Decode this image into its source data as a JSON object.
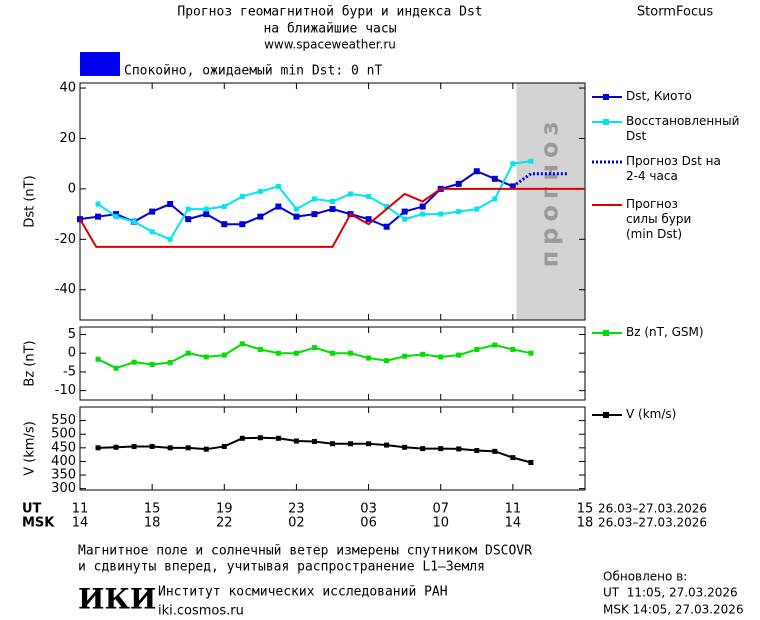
{
  "header": {
    "title": "Прогноз геомагнитной бури и индекса Dst",
    "subtitle": "на ближайшие часы",
    "url": "www.spaceweather.ru",
    "brand": "StormFocus"
  },
  "status": {
    "text": "Спокойно, ожидаемый min Dst: 0 nT",
    "color": "#0000ee"
  },
  "chart_data": [
    {
      "type": "line",
      "ylabel": "Dst (nT)",
      "xlim": [
        0,
        28
      ],
      "ylim": [
        -52,
        42
      ],
      "yticks": [
        -40,
        -20,
        0,
        20,
        40
      ],
      "forecast_region": {
        "xlim": [
          24.2,
          28
        ],
        "label": "прогноз",
        "color": "#d3d3d3"
      },
      "series": [
        {
          "name": "Dst, Киото",
          "color": "#0000dd",
          "marker": "square",
          "line": "solid",
          "x": [
            0,
            1,
            2,
            3,
            4,
            5,
            6,
            7,
            8,
            9,
            10,
            11,
            12,
            13,
            14,
            15,
            16,
            17,
            18,
            19,
            20,
            21,
            22,
            23,
            24
          ],
          "values": [
            -12,
            -11,
            -10,
            -13,
            -9,
            -6,
            -12,
            -10,
            -14,
            -14,
            -11,
            -7,
            -11,
            -10,
            -8,
            -10,
            -12,
            -15,
            -9,
            -7,
            0,
            2,
            7,
            4,
            1
          ]
        },
        {
          "name": "Восстановленный Dst",
          "color": "#00e5ee",
          "marker": "square",
          "line": "solid",
          "x": [
            1,
            2,
            3,
            4,
            5,
            6,
            7,
            8,
            9,
            10,
            11,
            12,
            13,
            14,
            15,
            16,
            17,
            18,
            19,
            20,
            21,
            22,
            23,
            24,
            25
          ],
          "values": [
            -6,
            -11,
            -13,
            -17,
            -20,
            -8,
            -8,
            -7,
            -3,
            -1,
            1,
            -8,
            -4,
            -5,
            -2,
            -3,
            -7,
            -12,
            -10,
            -10,
            -9,
            -8,
            -4,
            10,
            11
          ]
        },
        {
          "name": "Прогноз Dst на 2-4 часа",
          "color": "#0000dd",
          "marker": "none",
          "line": "dotted",
          "x": [
            24,
            25,
            26,
            27
          ],
          "values": [
            1,
            6,
            6,
            6
          ]
        },
        {
          "name": "Прогноз силы бури (min Dst)",
          "color": "#dd0000",
          "marker": "none",
          "line": "solid",
          "x": [
            0,
            0.9,
            14,
            15,
            16,
            18,
            19,
            20,
            28
          ],
          "values": [
            -12,
            -23,
            -23,
            -10,
            -14,
            -2,
            -5,
            0,
            0
          ]
        }
      ]
    },
    {
      "type": "line",
      "ylabel": "Bz (nT)",
      "xlim": [
        0,
        28
      ],
      "ylim": [
        -12.5,
        7
      ],
      "yticks": [
        -10,
        -5,
        0,
        5
      ],
      "series": [
        {
          "name": "Bz (nT, GSM)",
          "color": "#00dd00",
          "marker": "square",
          "line": "solid",
          "x": [
            1,
            2,
            3,
            4,
            5,
            6,
            7,
            8,
            9,
            10,
            11,
            12,
            13,
            14,
            15,
            16,
            17,
            18,
            19,
            20,
            21,
            22,
            23,
            24,
            25
          ],
          "values": [
            -1.6,
            -4,
            -2.4,
            -3,
            -2.5,
            0,
            -1,
            -0.5,
            2.5,
            1,
            0,
            0,
            1.5,
            0,
            0,
            -1.3,
            -2,
            -0.8,
            -0.3,
            -1,
            -0.5,
            1,
            2.2,
            1,
            0
          ]
        }
      ]
    },
    {
      "type": "line",
      "ylabel": "V (km/s)",
      "xlim": [
        0,
        28
      ],
      "ylim": [
        295,
        600
      ],
      "yticks": [
        300,
        350,
        400,
        450,
        500,
        550
      ],
      "xlabel_ut": "UT",
      "xlabel_msk": "MSK",
      "date_range": "26.03–27.03.2026",
      "xticks": [
        {
          "value": 0,
          "label": "11"
        },
        {
          "value": 4,
          "label": "15"
        },
        {
          "value": 8,
          "label": "19"
        },
        {
          "value": 12,
          "label": "23"
        },
        {
          "value": 16,
          "label": "03"
        },
        {
          "value": 20,
          "label": "07"
        },
        {
          "value": 24,
          "label": "11"
        },
        {
          "value": 28,
          "label": "15"
        }
      ],
      "xticks_msk": [
        {
          "value": 0,
          "label": "14"
        },
        {
          "value": 4,
          "label": "18"
        },
        {
          "value": 8,
          "label": "22"
        },
        {
          "value": 12,
          "label": "02"
        },
        {
          "value": 16,
          "label": "06"
        },
        {
          "value": 20,
          "label": "10"
        },
        {
          "value": 24,
          "label": "14"
        },
        {
          "value": 28,
          "label": "18"
        }
      ],
      "series": [
        {
          "name": "V (km/s)",
          "color": "#000000",
          "marker": "square",
          "line": "solid",
          "x": [
            1,
            2,
            3,
            4,
            5,
            6,
            7,
            8,
            9,
            10,
            11,
            12,
            13,
            14,
            15,
            16,
            17,
            18,
            19,
            20,
            21,
            22,
            23,
            24,
            25
          ],
          "values": [
            450,
            452,
            455,
            455,
            450,
            450,
            445,
            455,
            485,
            487,
            485,
            475,
            473,
            465,
            465,
            465,
            460,
            452,
            447,
            447,
            446,
            440,
            437,
            414,
            396
          ]
        }
      ]
    }
  ],
  "footer": {
    "note_line1": "Магнитное поле и солнечный ветер измерены спутником DSCOVR",
    "note_line2": "и сдвинуты вперед, учитывая распространение L1–Земля",
    "logo": "ИКИ",
    "institute": "Институт космических исследований РАН",
    "institute_url": "iki.cosmos.ru",
    "updated_label": "Обновлено в:",
    "updated_ut": "UT  11:05, 27.03.2026",
    "updated_msk": "MSK 14:05, 27.03.2026"
  }
}
